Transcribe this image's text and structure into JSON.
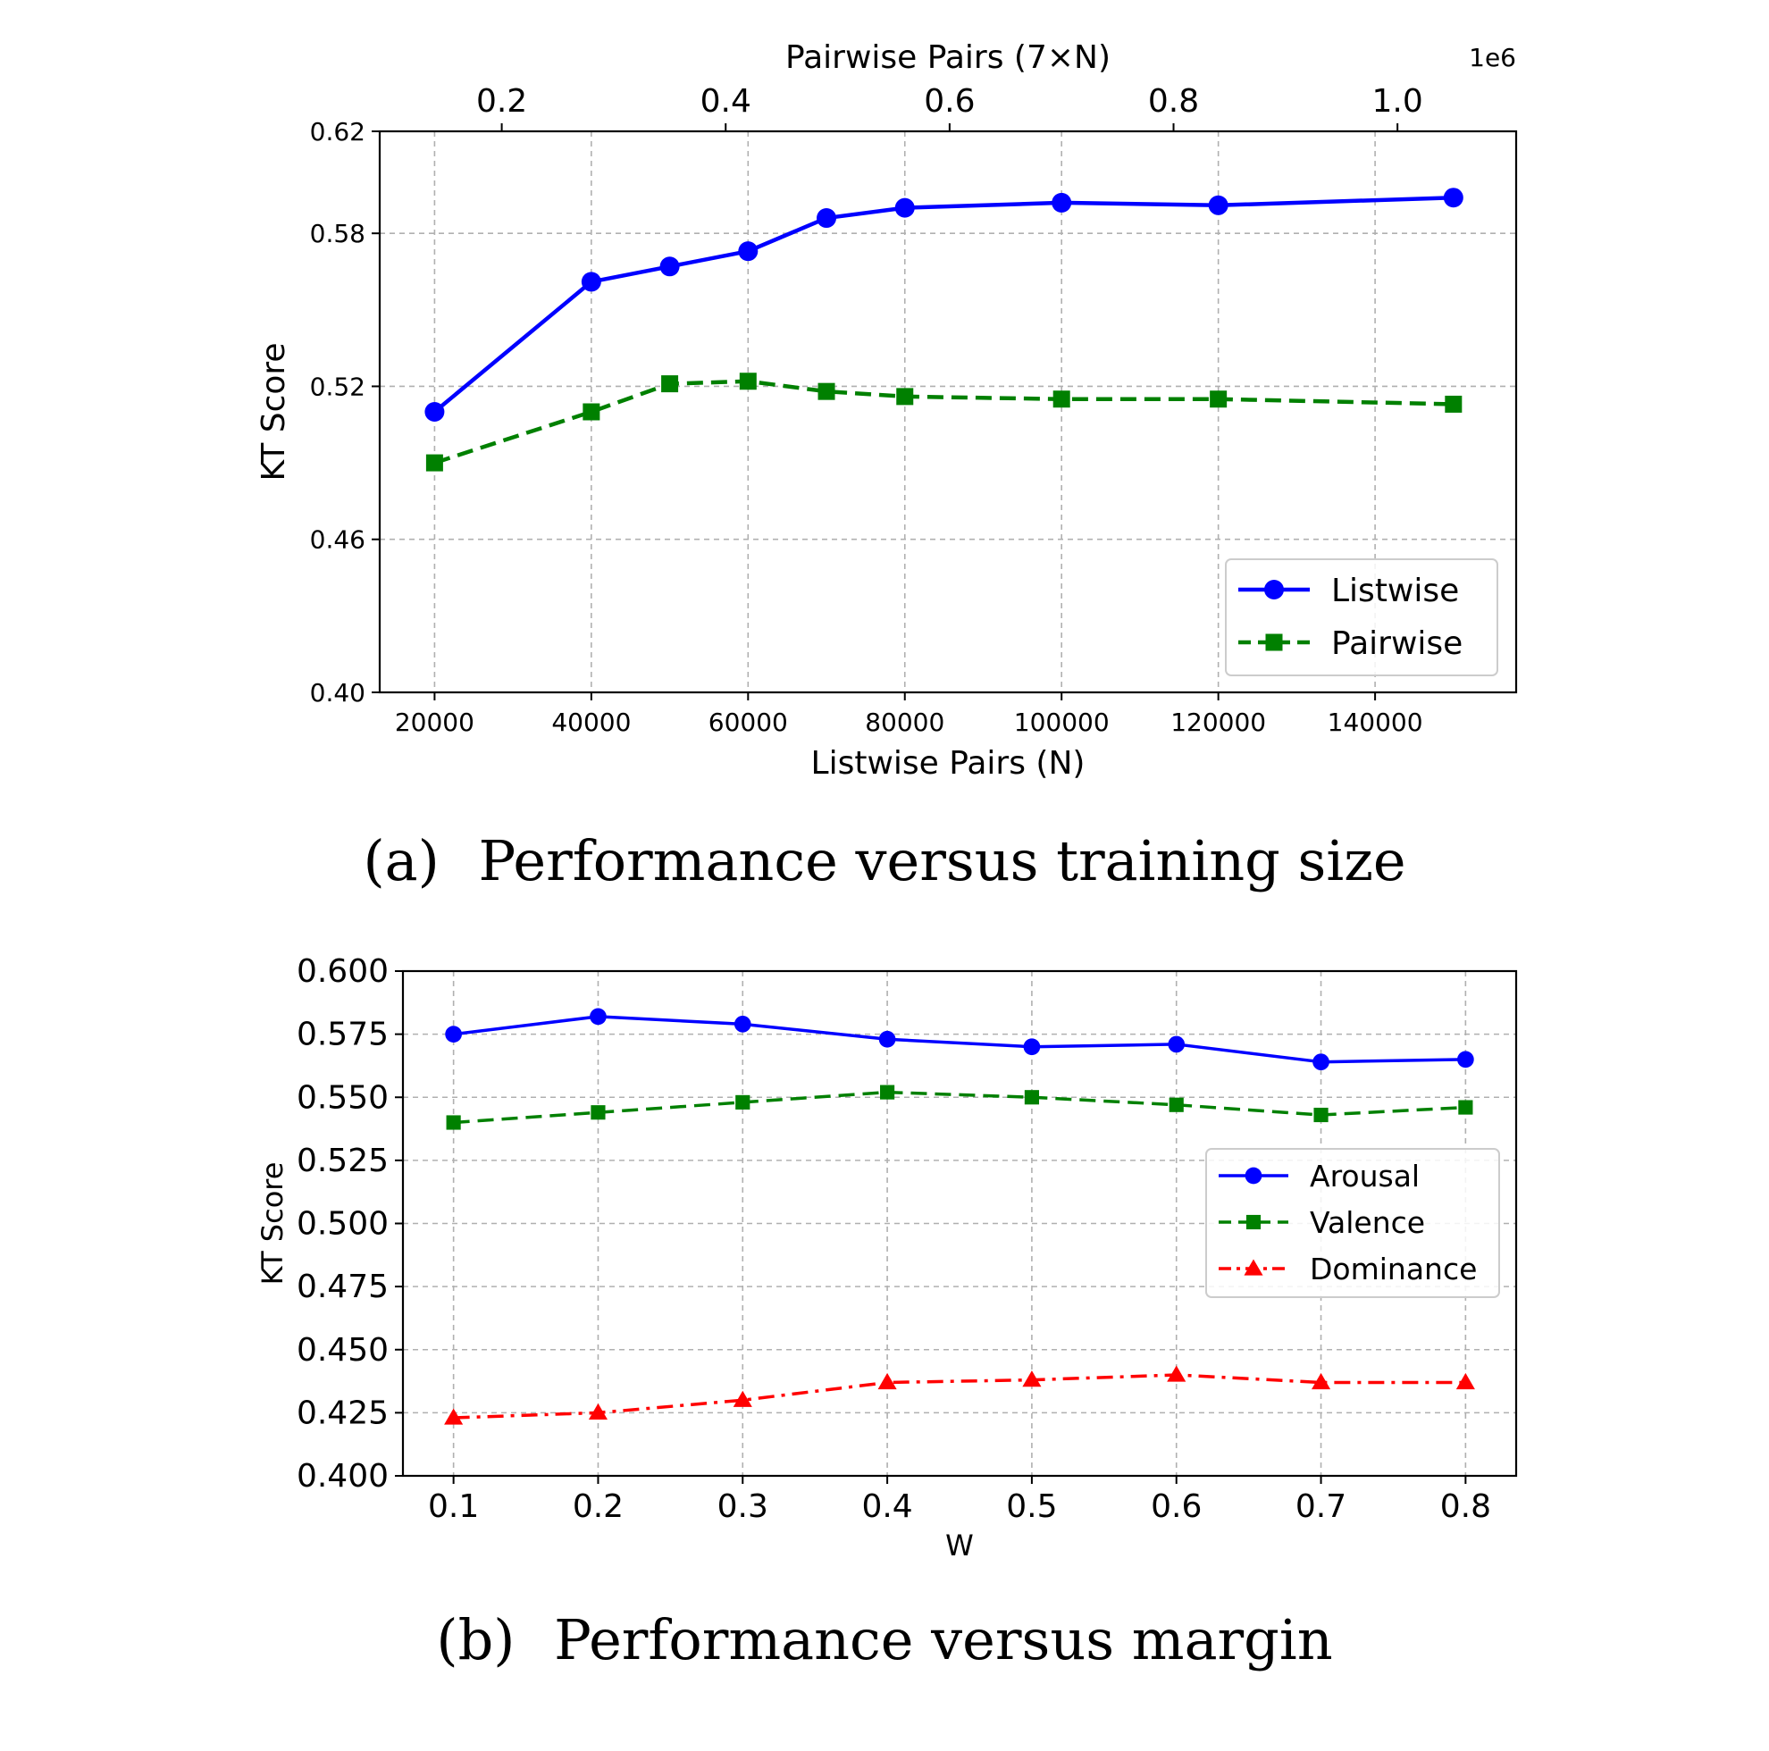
{
  "chart_data": [
    {
      "type": "line",
      "caption_tag": "(a)",
      "caption": "Performance versus training size",
      "xlabel": "Listwise Pairs (N)",
      "ylabel": "KT Score",
      "top_xlabel": "Pairwise Pairs (7×N)",
      "top_offset_text": "1e6",
      "xlim": [
        13000,
        158000
      ],
      "ylim": [
        0.4,
        0.62
      ],
      "x_ticks": [
        20000,
        40000,
        60000,
        80000,
        100000,
        120000,
        140000
      ],
      "x_tick_labels": [
        "20000",
        "40000",
        "60000",
        "80000",
        "100000",
        "120000",
        "140000"
      ],
      "y_ticks": [
        0.4,
        0.46,
        0.52,
        0.58,
        0.62
      ],
      "y_tick_labels": [
        "0.40",
        "0.46",
        "0.52",
        "0.58",
        "0.62"
      ],
      "top_ticks": [
        0.2,
        0.4,
        0.6,
        0.8,
        1.0
      ],
      "top_tick_labels": [
        "0.2",
        "0.4",
        "0.6",
        "0.8",
        "1.0"
      ],
      "grid": true,
      "legend_position": "lower-right",
      "x": [
        20000,
        40000,
        50000,
        60000,
        70000,
        80000,
        100000,
        120000,
        150000
      ],
      "series": [
        {
          "name": "Listwise",
          "color": "#0000ff",
          "marker": "circle",
          "linestyle": "solid",
          "values": [
            0.51,
            0.561,
            0.567,
            0.573,
            0.586,
            0.59,
            0.592,
            0.591,
            0.594
          ]
        },
        {
          "name": "Pairwise",
          "color": "#008000",
          "marker": "square",
          "linestyle": "dashed",
          "values": [
            0.49,
            0.51,
            0.521,
            0.522,
            0.518,
            0.516,
            0.515,
            0.515,
            0.513
          ]
        }
      ]
    },
    {
      "type": "line",
      "caption_tag": "(b)",
      "caption": "Performance versus margin",
      "xlabel": "W",
      "ylabel": "KT Score",
      "xlim": [
        0.065,
        0.835
      ],
      "ylim": [
        0.4,
        0.6
      ],
      "x_ticks": [
        0.1,
        0.2,
        0.3,
        0.4,
        0.5,
        0.6,
        0.7,
        0.8
      ],
      "x_tick_labels": [
        "0.1",
        "0.2",
        "0.3",
        "0.4",
        "0.5",
        "0.6",
        "0.7",
        "0.8"
      ],
      "y_ticks": [
        0.4,
        0.425,
        0.45,
        0.475,
        0.5,
        0.525,
        0.55,
        0.575,
        0.6
      ],
      "y_tick_labels": [
        "0.400",
        "0.425",
        "0.450",
        "0.475",
        "0.500",
        "0.525",
        "0.550",
        "0.575",
        "0.600"
      ],
      "grid": true,
      "legend_position": "center-right",
      "x": [
        0.1,
        0.2,
        0.3,
        0.4,
        0.5,
        0.6,
        0.7,
        0.8
      ],
      "series": [
        {
          "name": "Arousal",
          "color": "#0000ff",
          "marker": "circle",
          "linestyle": "solid",
          "values": [
            0.575,
            0.582,
            0.579,
            0.573,
            0.57,
            0.571,
            0.564,
            0.565
          ]
        },
        {
          "name": "Valence",
          "color": "#008000",
          "marker": "square",
          "linestyle": "dashed",
          "values": [
            0.54,
            0.544,
            0.548,
            0.552,
            0.55,
            0.547,
            0.543,
            0.546
          ]
        },
        {
          "name": "Dominance",
          "color": "#ff0000",
          "marker": "triangle",
          "linestyle": "dashdot",
          "values": [
            0.423,
            0.425,
            0.43,
            0.437,
            0.438,
            0.44,
            0.437,
            0.437
          ]
        }
      ]
    }
  ]
}
